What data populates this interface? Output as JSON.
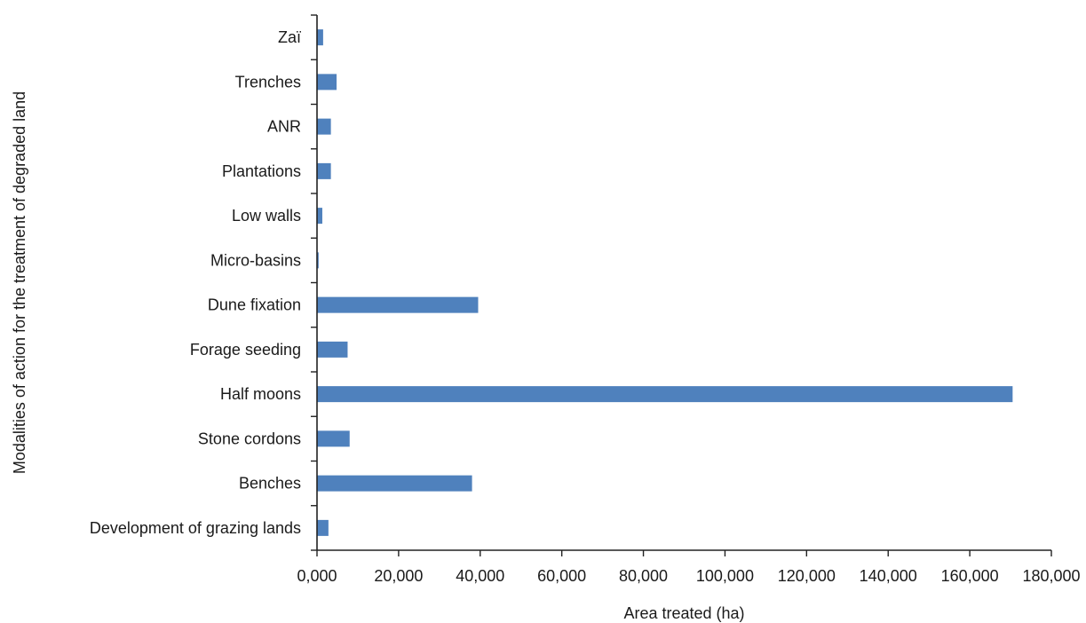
{
  "chart_data": {
    "type": "bar",
    "orientation": "horizontal",
    "categories": [
      "Zaï",
      "Trenches",
      "ANR",
      "Plantations",
      "Low walls",
      "Micro-basins",
      "Dune fixation",
      "Forage seeding",
      "Half moons",
      "Stone cordons",
      "Benches",
      "Development of grazing lands"
    ],
    "values": [
      1500,
      4800,
      3400,
      3400,
      1300,
      400,
      39500,
      7500,
      170500,
      8000,
      38000,
      2800
    ],
    "xlabel": "Area treated (ha)",
    "ylabel": "Modalities of action for the treatment of degraded land",
    "xlim": [
      0,
      180000
    ],
    "x_ticks": [
      0,
      20000,
      40000,
      60000,
      80000,
      100000,
      120000,
      140000,
      160000,
      180000
    ],
    "x_tick_labels": [
      "0,000",
      "20,000",
      "40,000",
      "60,000",
      "80,000",
      "100,000",
      "120,000",
      "140,000",
      "160,000",
      "180,000"
    ],
    "bar_color": "#4f81bd",
    "grid": false,
    "legend": "none"
  }
}
